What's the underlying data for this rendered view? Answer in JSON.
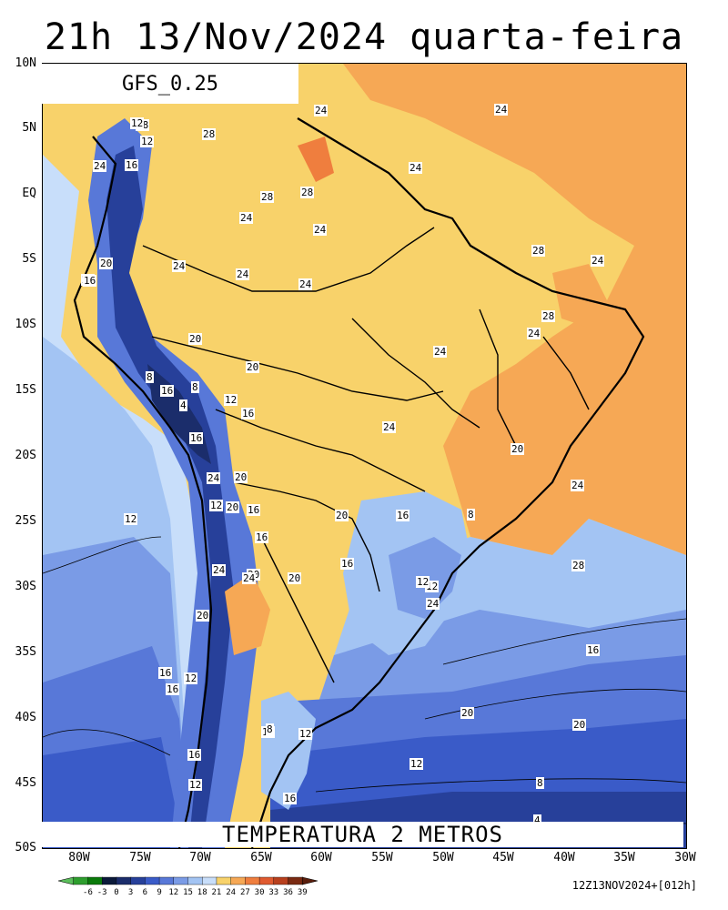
{
  "header": {
    "title": "21h 13/Nov/2024 quarta-feira"
  },
  "model": {
    "name": "GFS_0.25"
  },
  "variable": {
    "label": "TEMPERATURA 2 METROS"
  },
  "run_stamp": "12Z13NOV2024+[012h]",
  "axes": {
    "lat_labels": [
      "10N",
      "5N",
      "EQ",
      "5S",
      "10S",
      "15S",
      "20S",
      "25S",
      "30S",
      "35S",
      "40S",
      "45S",
      "50S"
    ],
    "lon_labels": [
      "80W",
      "75W",
      "70W",
      "65W",
      "60W",
      "55W",
      "50W",
      "45W",
      "40W",
      "35W",
      "30W"
    ]
  },
  "colorbar": {
    "labels": [
      "-6",
      "-3",
      "0",
      "3",
      "6",
      "9",
      "12",
      "15",
      "18",
      "21",
      "24",
      "27",
      "30",
      "33",
      "36",
      "39"
    ],
    "colors": [
      "#2e9e2e",
      "#0a7a0a",
      "#0b1a3a",
      "#1b2d6b",
      "#27409a",
      "#3a5bc8",
      "#5878d8",
      "#7a9be6",
      "#a3c4f3",
      "#c8defa",
      "#f8d26a",
      "#f6a855",
      "#ef7e3e",
      "#e05a30",
      "#b8401e",
      "#7a2a12"
    ]
  },
  "contour_labels": [
    "28",
    "24",
    "12",
    "12",
    "16",
    "24",
    "28",
    "24",
    "28",
    "24",
    "28",
    "24",
    "24",
    "24",
    "24",
    "28",
    "24",
    "24",
    "20",
    "20",
    "16",
    "24",
    "28",
    "24",
    "20",
    "20",
    "24",
    "20",
    "8",
    "16",
    "8",
    "4",
    "16",
    "12",
    "16",
    "24",
    "20",
    "24",
    "20",
    "16",
    "12",
    "12",
    "16",
    "20",
    "16",
    "8",
    "24",
    "20",
    "24",
    "16",
    "20",
    "28",
    "24",
    "12",
    "20",
    "16",
    "12",
    "12",
    "16",
    "20",
    "16",
    "16",
    "20",
    "12",
    "8",
    "12",
    "16",
    "16",
    "12",
    "8",
    "4"
  ]
}
